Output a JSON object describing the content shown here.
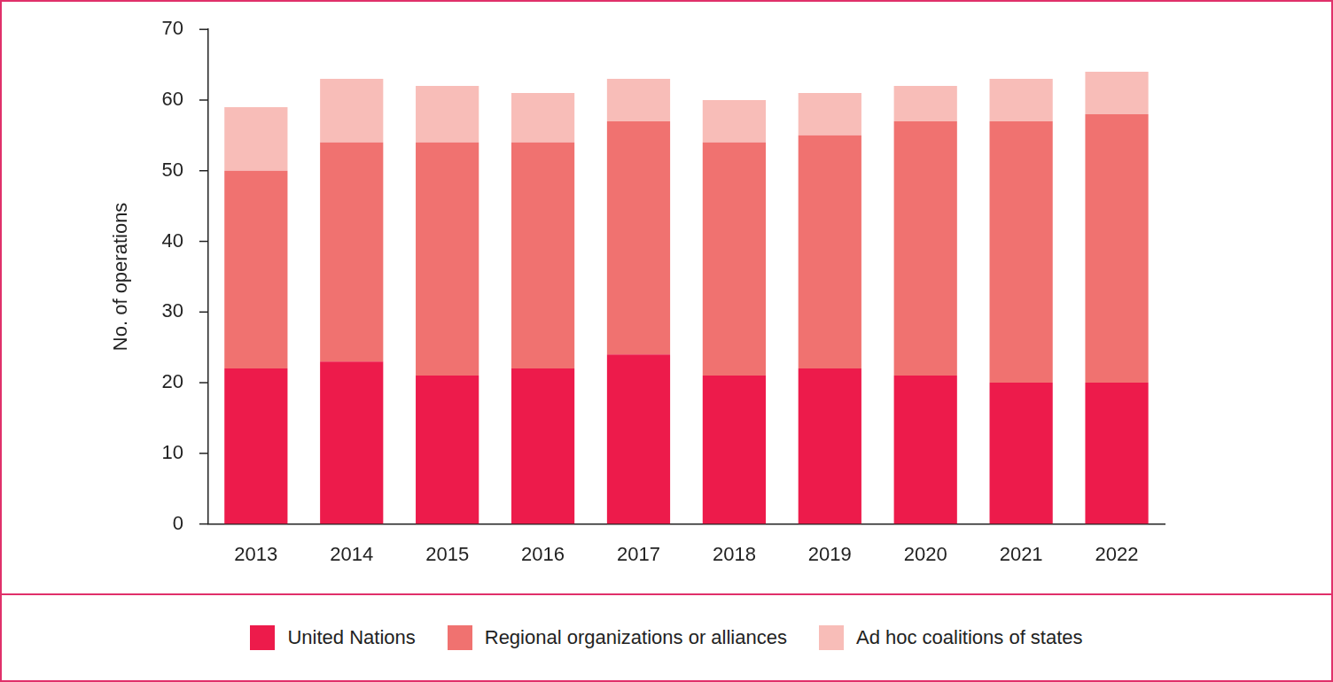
{
  "chart_data": {
    "type": "bar",
    "stacked": true,
    "y_label": "No. of operations",
    "categories": [
      "2013",
      "2014",
      "2015",
      "2016",
      "2017",
      "2018",
      "2019",
      "2020",
      "2021",
      "2022"
    ],
    "series": [
      {
        "name": "United Nations",
        "color": "#ed1b4b",
        "values": [
          22,
          23,
          21,
          22,
          24,
          21,
          22,
          21,
          20,
          20
        ]
      },
      {
        "name": "Regional organizations or alliances",
        "color": "#f07270",
        "values": [
          28,
          31,
          33,
          32,
          33,
          33,
          33,
          36,
          37,
          38
        ]
      },
      {
        "name": "Ad hoc coalitions of states",
        "color": "#f8bdb8",
        "values": [
          9,
          9,
          8,
          7,
          6,
          6,
          6,
          5,
          6,
          6
        ]
      }
    ],
    "ylim": [
      0,
      70
    ],
    "yticks": [
      0,
      10,
      20,
      30,
      40,
      50,
      60,
      70
    ],
    "grid": false,
    "legend": "bottom"
  }
}
